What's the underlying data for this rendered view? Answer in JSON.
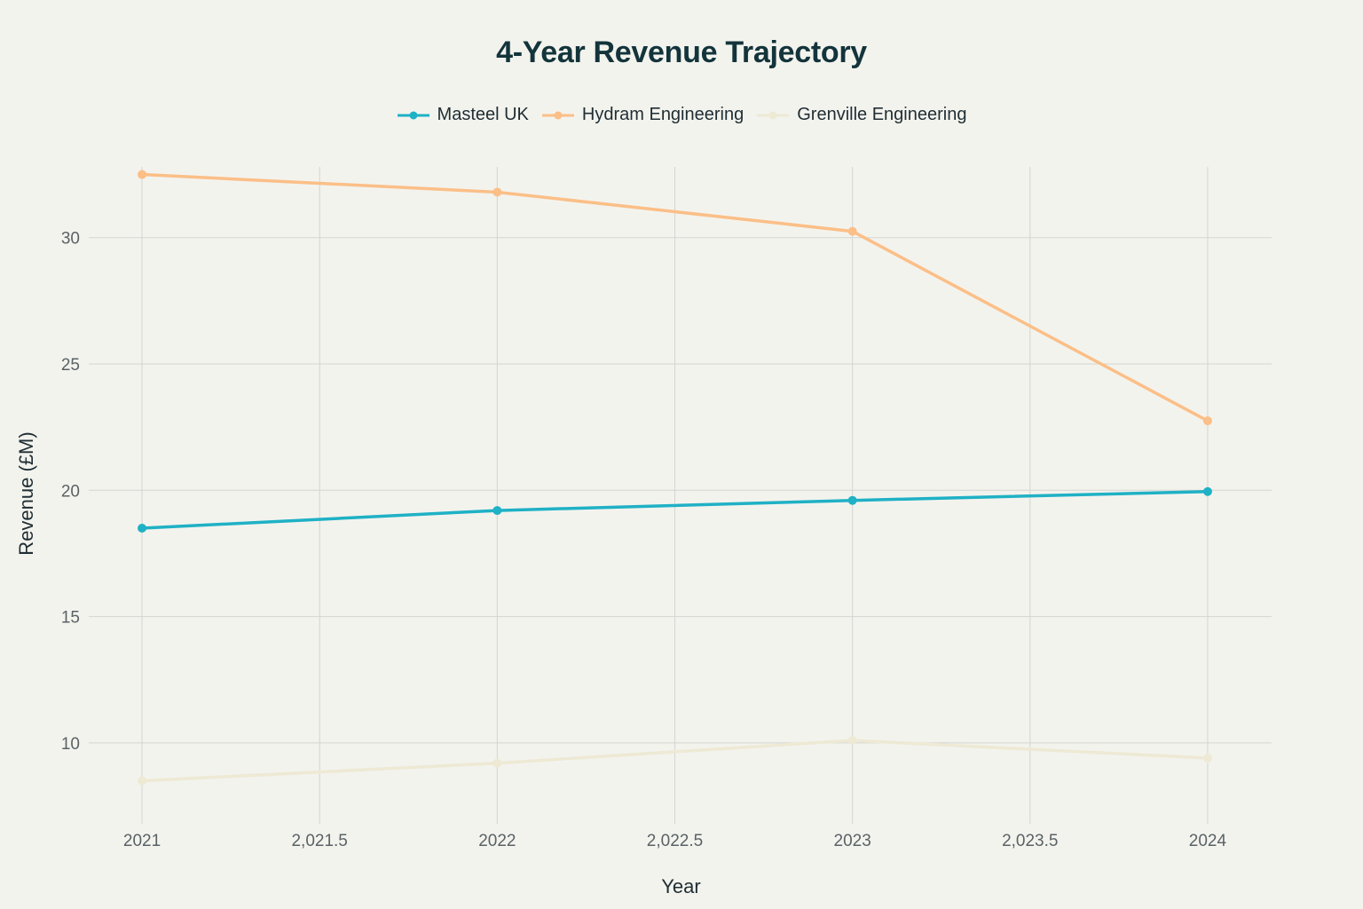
{
  "chart_data": {
    "type": "line",
    "title": "4-Year Revenue Trajectory",
    "xlabel": "Year",
    "ylabel": "Revenue (£M)",
    "x": [
      2021,
      2022,
      2023,
      2024
    ],
    "xlim": [
      2020.85,
      2024.18
    ],
    "ylim": [
      6.8,
      32.8
    ],
    "x_ticks": [
      2021,
      2021.5,
      2022,
      2022.5,
      2023,
      2023.5,
      2024
    ],
    "x_tick_labels": [
      "2021",
      "2,021.5",
      "2022",
      "2,022.5",
      "2023",
      "2,023.5",
      "2024"
    ],
    "y_ticks": [
      10,
      15,
      20,
      25,
      30
    ],
    "y_tick_labels": [
      "10",
      "15",
      "20",
      "25",
      "30"
    ],
    "grid": true,
    "legend_position": "top-center",
    "series": [
      {
        "name": "Masteel UK",
        "color": "#1fb1c5",
        "values": [
          18.5,
          19.2,
          19.6,
          19.95
        ]
      },
      {
        "name": "Hydram Engineering",
        "color": "#fbbf87",
        "values": [
          32.5,
          31.8,
          30.25,
          22.75
        ]
      },
      {
        "name": "Grenville Engineering",
        "color": "#ede9d4",
        "values": [
          8.5,
          9.2,
          10.1,
          9.4
        ]
      }
    ]
  }
}
